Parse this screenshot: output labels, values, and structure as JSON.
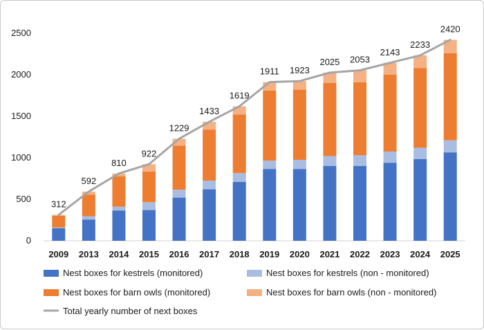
{
  "chart_data": {
    "type": "bar",
    "stacked": true,
    "categories": [
      "2009",
      "2013",
      "2014",
      "2015",
      "2016",
      "2017",
      "2018",
      "2019",
      "2020",
      "2021",
      "2022",
      "2023",
      "2024",
      "2025"
    ],
    "series": [
      {
        "name": "Nest boxes for kestrels (monitored)",
        "color": "#4472C4",
        "values": [
          150,
          255,
          365,
          370,
          520,
          620,
          710,
          865,
          865,
          900,
          900,
          940,
          985,
          1065
        ]
      },
      {
        "name": "Nest boxes for kestrels (non - monitored)",
        "color": "#A9BDE3",
        "values": [
          10,
          40,
          45,
          95,
          95,
          105,
          105,
          100,
          110,
          120,
          130,
          135,
          135,
          145
        ]
      },
      {
        "name": "Nest boxes for barn owls (monitored)",
        "color": "#ED7D31",
        "values": [
          142,
          260,
          365,
          370,
          530,
          615,
          705,
          845,
          845,
          880,
          880,
          925,
          960,
          1050
        ]
      },
      {
        "name": "Nest boxes for barn owls (non - monitored)",
        "color": "#F4B183",
        "values": [
          10,
          37,
          35,
          87,
          84,
          93,
          99,
          101,
          103,
          125,
          143,
          143,
          153,
          160
        ]
      }
    ],
    "line": {
      "name": "Total yearly number of next boxes",
      "color": "#A5A5A5",
      "values": [
        312,
        592,
        810,
        922,
        1229,
        1433,
        1619,
        1911,
        1923,
        2025,
        2053,
        2143,
        2233,
        2420
      ],
      "labels": [
        "312",
        "592",
        "810",
        "922",
        "1229",
        "1433",
        "1619",
        "1911",
        "1923",
        "2025",
        "2053",
        "2143",
        "2233",
        "2420"
      ]
    },
    "yticks": [
      "0",
      "500",
      "1000",
      "1500",
      "2000",
      "2500"
    ],
    "ylim": [
      0,
      2500
    ],
    "title": "",
    "xlabel": "",
    "ylabel": "",
    "grid": false,
    "legend_position": "bottom"
  }
}
